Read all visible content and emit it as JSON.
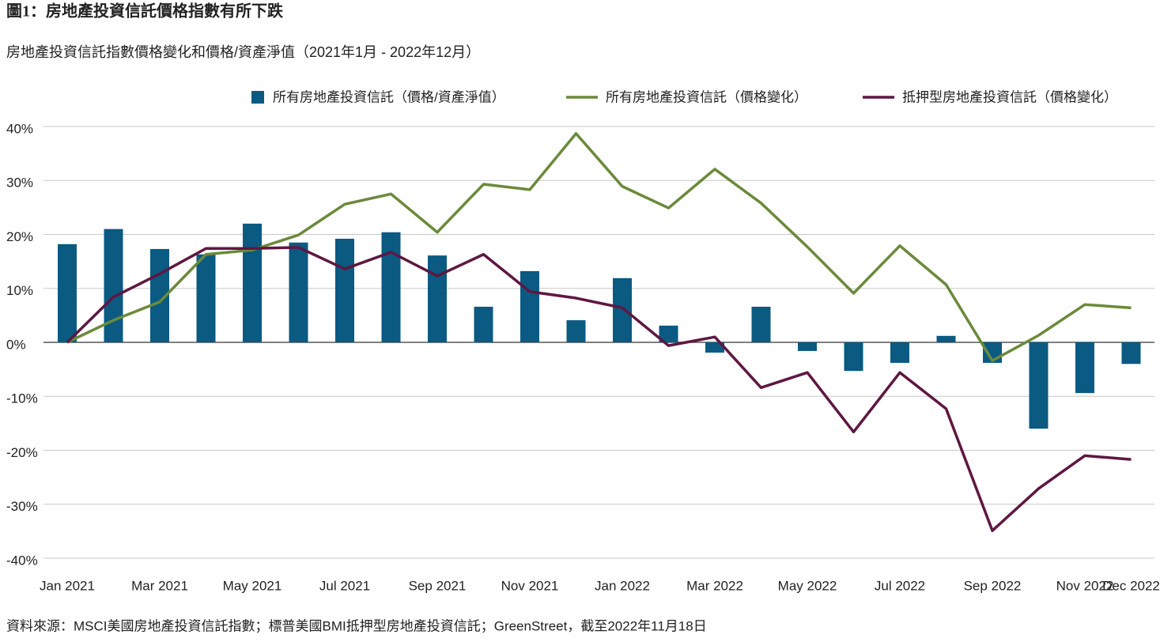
{
  "chart_data": {
    "type": "bar_line",
    "title": "圖1：房地產投資信託價格指數有所下跌",
    "subtitle": "房地產投資信託指數價格變化和價格/資產淨值（2021年1月 - 2022年12月）",
    "source": "資料來源：MSCI美國房地產投資信託指數；標普美國BMI抵押型房地產投資信託；GreenStreet，截至2022年11月18日",
    "categories": [
      "Jan 2021",
      null,
      "Mar 2021",
      null,
      "May 2021",
      null,
      "Jul 2021",
      null,
      "Sep 2021",
      null,
      "Nov 2021",
      null,
      "Jan 2022",
      null,
      "Mar 2022",
      null,
      "May 2022",
      null,
      "Jul 2022",
      null,
      "Sep 2022",
      null,
      "Nov 2022",
      "Dec 2022"
    ],
    "series": [
      {
        "name": "所有房地產投資信託（價格/資產淨值）",
        "kind": "bar",
        "color": "#0a5a82",
        "values": [
          18.2,
          21.0,
          17.3,
          16.3,
          22.0,
          18.5,
          19.2,
          20.4,
          16.1,
          6.6,
          13.2,
          4.1,
          11.9,
          3.1,
          -1.9,
          6.6,
          -1.6,
          -5.3,
          -3.8,
          1.2,
          -3.8,
          -16.0,
          -9.4,
          -4.0
        ]
      },
      {
        "name": "所有房地產投資信託（價格變化）",
        "kind": "line",
        "color": "#6b8a3a",
        "values": [
          0,
          4.1,
          7.5,
          16.3,
          17.1,
          19.9,
          25.6,
          27.5,
          20.4,
          29.3,
          28.3,
          38.7,
          28.9,
          24.9,
          32.1,
          25.8,
          17.7,
          9.1,
          17.9,
          10.7,
          -3.4,
          1.3,
          7.0,
          6.4
        ]
      },
      {
        "name": "抵押型房地產投資信託（價格變化）",
        "kind": "line",
        "color": "#5e1742",
        "values": [
          0,
          8.4,
          12.7,
          17.4,
          17.4,
          17.6,
          13.6,
          16.7,
          12.3,
          16.3,
          9.4,
          8.2,
          6.4,
          -0.6,
          1.0,
          -8.4,
          -5.6,
          -16.6,
          -5.6,
          -12.3,
          -34.9,
          -27.1,
          -21.0,
          -21.7
        ]
      }
    ],
    "ylim": [
      -40,
      40
    ],
    "yticks": [
      {
        "value": -40,
        "label": "-40%"
      },
      {
        "value": -30,
        "label": "-30%"
      },
      {
        "value": -20,
        "label": "-20%"
      },
      {
        "value": -10,
        "label": "-10%"
      },
      {
        "value": 0,
        "label": "0%"
      },
      {
        "value": 10,
        "label": "10%"
      },
      {
        "value": 20,
        "label": "20%"
      },
      {
        "value": 30,
        "label": "30%"
      },
      {
        "value": 40,
        "label": "40%"
      }
    ],
    "grid": true
  }
}
